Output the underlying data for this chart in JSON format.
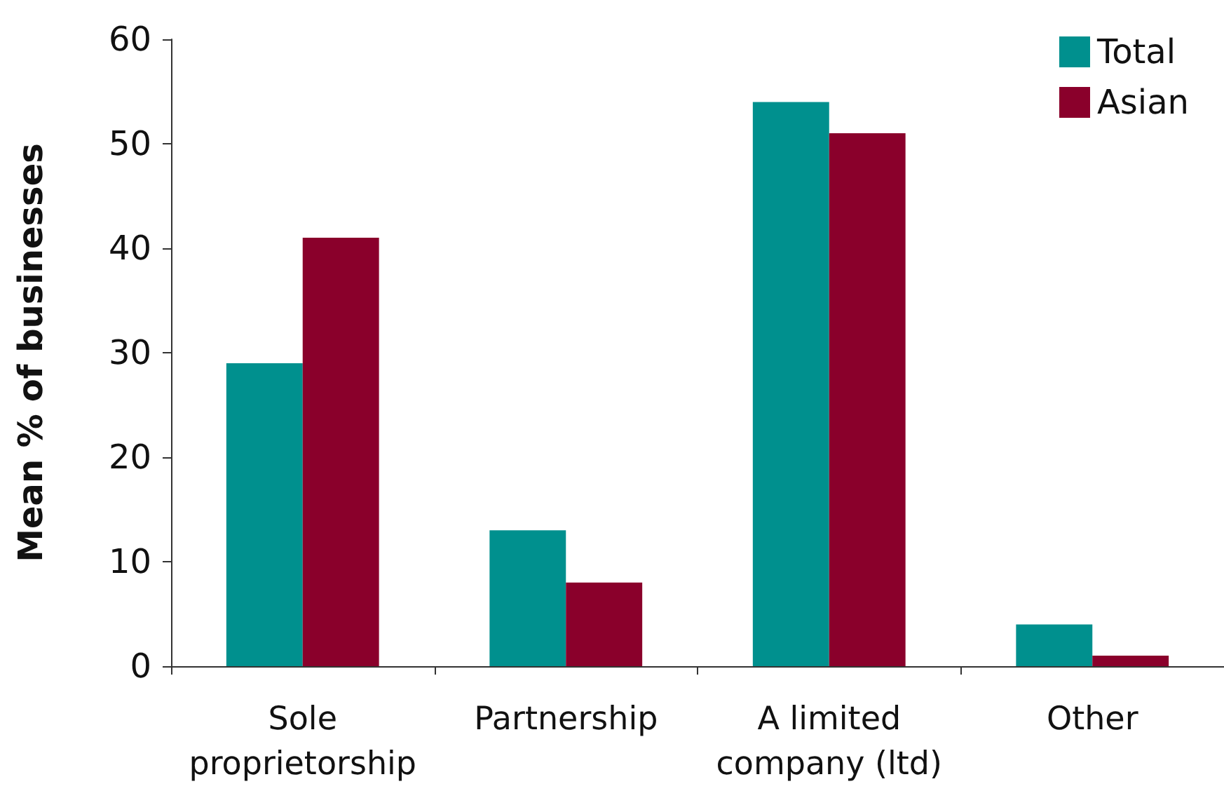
{
  "chart_data": {
    "type": "bar",
    "ylabel": "Mean % of businesses",
    "categories": [
      "Sole\nproprietorship",
      "Partnership",
      "A limited\ncompany (ltd)",
      "Other"
    ],
    "series": [
      {
        "name": "Total",
        "color": "#00908e",
        "values": [
          29,
          13,
          54,
          4
        ]
      },
      {
        "name": "Asian",
        "color": "#8a002b",
        "values": [
          41,
          8,
          51,
          1
        ]
      }
    ],
    "ylim": [
      0,
      60
    ],
    "yticks": [
      0,
      10,
      20,
      30,
      40,
      50,
      60
    ],
    "grid": false,
    "legend": "top right"
  }
}
